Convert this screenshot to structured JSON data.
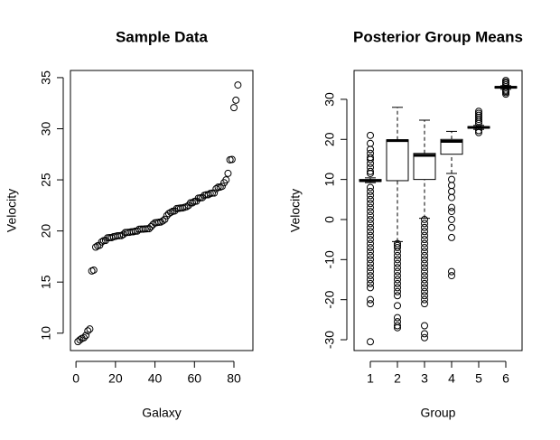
{
  "chart_data": [
    {
      "type": "scatter",
      "title": "Sample Data",
      "x_label": "Galaxy",
      "y_label": "Velocity",
      "color": "#000000",
      "x": [
        1,
        2,
        3,
        4,
        5,
        6,
        7,
        8,
        9,
        10,
        11,
        12,
        13,
        14,
        15,
        16,
        17,
        18,
        19,
        20,
        21,
        22,
        23,
        24,
        25,
        26,
        27,
        28,
        29,
        30,
        31,
        32,
        33,
        34,
        35,
        36,
        37,
        38,
        39,
        40,
        41,
        42,
        43,
        44,
        45,
        46,
        47,
        48,
        49,
        50,
        51,
        52,
        53,
        54,
        55,
        56,
        57,
        58,
        59,
        60,
        61,
        62,
        63,
        64,
        65,
        66,
        67,
        68,
        69,
        70,
        71,
        72,
        73,
        74,
        75,
        76,
        77,
        78,
        79,
        80,
        81,
        82
      ],
      "values": [
        9.172,
        9.35,
        9.483,
        9.558,
        9.775,
        10.227,
        10.406,
        16.084,
        16.17,
        18.419,
        18.552,
        18.6,
        18.927,
        19.052,
        19.07,
        19.33,
        19.343,
        19.349,
        19.44,
        19.473,
        19.529,
        19.541,
        19.547,
        19.663,
        19.846,
        19.856,
        19.863,
        19.914,
        19.918,
        19.973,
        19.989,
        20.166,
        20.175,
        20.179,
        20.196,
        20.215,
        20.221,
        20.415,
        20.629,
        20.795,
        20.821,
        20.846,
        20.875,
        20.986,
        21.137,
        21.492,
        21.701,
        21.814,
        21.921,
        21.96,
        22.185,
        22.209,
        22.242,
        22.249,
        22.314,
        22.374,
        22.495,
        22.746,
        22.747,
        22.888,
        22.914,
        23.206,
        23.241,
        23.263,
        23.484,
        23.538,
        23.542,
        23.666,
        23.706,
        23.711,
        24.129,
        24.285,
        24.289,
        24.366,
        24.717,
        24.99,
        25.633,
        26.96,
        26.995,
        32.065,
        32.789,
        34.279
      ],
      "xlim": [
        -2.8,
        89.6
      ],
      "xticks": [
        0,
        20,
        40,
        60,
        80
      ],
      "ylim": [
        8.3,
        35.7
      ],
      "yticks": [
        10,
        15,
        20,
        25,
        30,
        35
      ]
    },
    {
      "type": "boxplot",
      "title": "Posterior Group Means",
      "x_label": "Group",
      "y_label": "Velocity",
      "color": "#000000",
      "categories": [
        "1",
        "2",
        "3",
        "4",
        "5",
        "6"
      ],
      "boxes": [
        {
          "whislo": 9.2,
          "q1": 9.5,
          "med": 9.7,
          "q3": 10.0,
          "whishi": 10.4,
          "outliers": [
            21,
            19,
            17.5,
            16.5,
            15.5,
            15,
            14,
            13,
            12,
            11.5,
            8,
            7,
            6,
            5,
            4,
            3,
            2,
            1,
            0,
            -1,
            -2,
            -3,
            -4,
            -5,
            -6,
            -7,
            -8,
            -9,
            -10,
            -11,
            -12,
            -13,
            -14,
            -15,
            -16,
            -17,
            -20,
            -21,
            -30.5
          ]
        },
        {
          "whislo": -5.5,
          "q1": 9.7,
          "med": 19.7,
          "q3": 19.9,
          "whishi": 28,
          "outliers": [
            -6,
            -6.5,
            -7,
            -8,
            -9,
            -10,
            -11,
            -12,
            -13,
            -14,
            -15,
            -16,
            -17,
            -18,
            -19,
            -21.5,
            -24.5,
            -25.5,
            -26.5,
            -27
          ]
        },
        {
          "whislo": 0.3,
          "q1": 10,
          "med": 16,
          "q3": 16.5,
          "whishi": 24.8,
          "outliers": [
            0,
            -1,
            -2,
            -3,
            -4,
            -5,
            -6,
            -7,
            -8,
            -9,
            -10,
            -11,
            -12,
            -13,
            -14,
            -15,
            -16,
            -17,
            -18,
            -19,
            -20,
            -21,
            -26.5,
            -28.5,
            -29.5
          ]
        },
        {
          "whislo": 11.5,
          "q1": 16.3,
          "med": 19.5,
          "q3": 20,
          "whishi": 22,
          "outliers": [
            10,
            8.5,
            7,
            5.5,
            3,
            2,
            0,
            -2,
            -4.5,
            -13,
            -14
          ]
        },
        {
          "whislo": 22.5,
          "q1": 22.8,
          "med": 23,
          "q3": 23.2,
          "whishi": 23.5,
          "outliers": [
            21.7,
            22.2,
            24,
            24.5,
            25,
            25.5,
            26,
            26.5,
            27
          ]
        },
        {
          "whislo": 32.5,
          "q1": 32.8,
          "med": 33,
          "q3": 33.2,
          "whishi": 33.4,
          "outliers": [
            31.3,
            31.7,
            32,
            32.3,
            33.6,
            34,
            34.3,
            34.7
          ]
        }
      ],
      "xlim": [
        0.4,
        6.6
      ],
      "ylim": [
        -32.7,
        37.2
      ],
      "yticks": [
        -30,
        -20,
        -10,
        0,
        10,
        20,
        30
      ]
    }
  ]
}
